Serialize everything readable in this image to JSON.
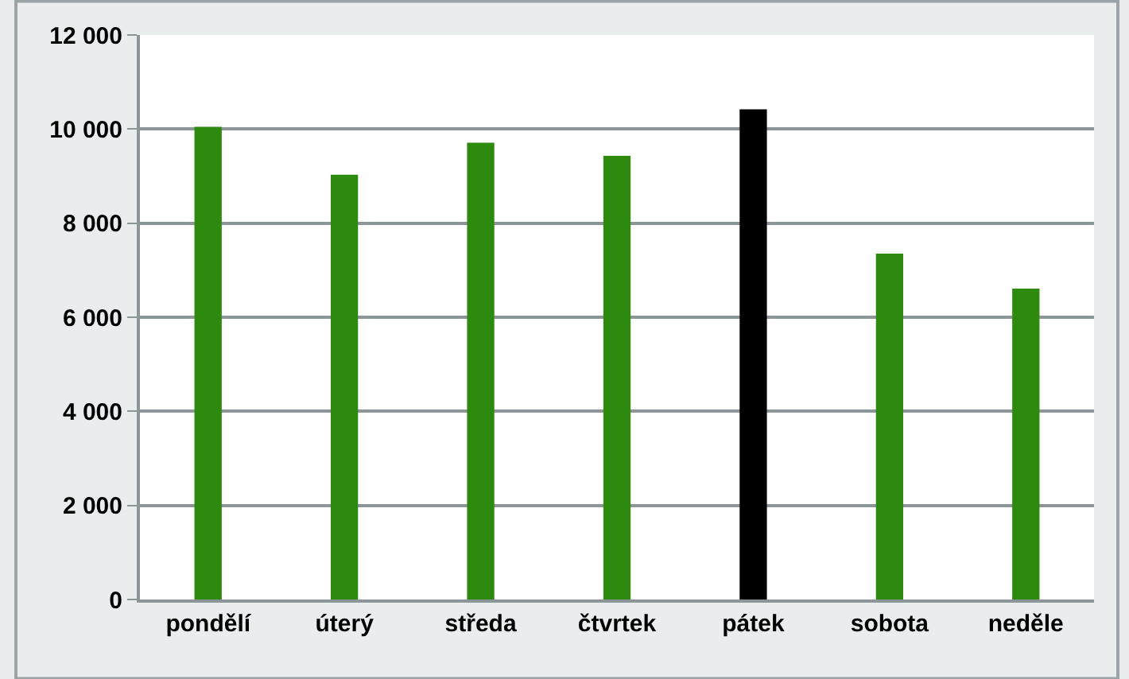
{
  "chart_data": {
    "type": "bar",
    "categories": [
      "pondělí",
      "úterý",
      "středa",
      "čtvrtek",
      "pátek",
      "sobota",
      "neděle"
    ],
    "values": [
      10050,
      9030,
      9710,
      9430,
      10420,
      7350,
      6610
    ],
    "colors": [
      "#2e8a0e",
      "#2e8a0e",
      "#2e8a0e",
      "#2e8a0e",
      "#000000",
      "#2e8a0e",
      "#2e8a0e"
    ],
    "ylim": [
      0,
      12000
    ],
    "yticks": [
      {
        "value": 0,
        "label": "0"
      },
      {
        "value": 2000,
        "label": "2 000"
      },
      {
        "value": 4000,
        "label": "4 000"
      },
      {
        "value": 6000,
        "label": "6 000"
      },
      {
        "value": 8000,
        "label": "8 000"
      },
      {
        "value": 10000,
        "label": "10 000"
      },
      {
        "value": 12000,
        "label": "12 000"
      }
    ],
    "grid": "y"
  }
}
